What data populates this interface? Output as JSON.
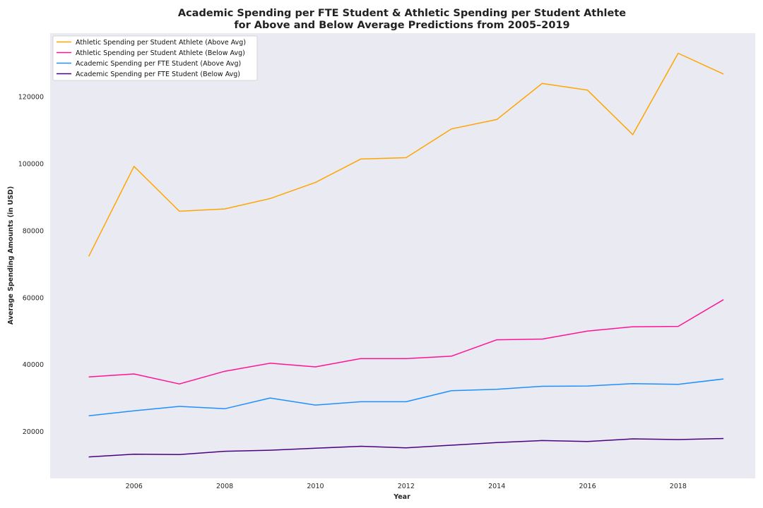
{
  "chart_data": {
    "type": "line",
    "title_lines": [
      "Academic Spending per FTE Student & Athletic Spending per Student Athlete",
      "for Above and Below Average Predictions from 2005–2019"
    ],
    "xlabel": "Year",
    "ylabel": "Average Spending Amounts (in USD)",
    "x": [
      2005,
      2006,
      2007,
      2008,
      2009,
      2010,
      2011,
      2012,
      2013,
      2014,
      2015,
      2016,
      2017,
      2018,
      2019
    ],
    "xlim": [
      2004.15,
      2019.7
    ],
    "ylim": [
      6000,
      139000
    ],
    "xticks": [
      "2006",
      "2008",
      "2010",
      "2012",
      "2014",
      "2016",
      "2018"
    ],
    "yticks": [
      "20000",
      "40000",
      "60000",
      "80000",
      "100000",
      "120000"
    ],
    "grid": false,
    "background": "#eaeaf2",
    "legend_position": "top-left",
    "series": [
      {
        "name": "Athletic Spending per Student Athlete (Above Avg)",
        "color": "#ffa500",
        "values": [
          72300,
          99200,
          85800,
          86500,
          89600,
          94400,
          101400,
          101800,
          110400,
          113200,
          124000,
          122000,
          108700,
          133000,
          126800
        ]
      },
      {
        "name": "Athletic Spending per Student Athlete (Below Avg)",
        "color": "#ff1493",
        "values": [
          36300,
          37200,
          34200,
          38000,
          40400,
          39300,
          41800,
          41800,
          42500,
          47400,
          47600,
          50000,
          51300,
          51400,
          59400
        ]
      },
      {
        "name": "Academic Spending per FTE Student (Above Avg)",
        "color": "#1e90ff",
        "values": [
          24700,
          26200,
          27500,
          26800,
          30000,
          27900,
          28900,
          28900,
          32200,
          32600,
          33500,
          33600,
          34300,
          34100,
          35700
        ]
      },
      {
        "name": "Academic Spending per FTE Student (Below Avg)",
        "color": "#4b0082",
        "values": [
          12400,
          13200,
          13100,
          14100,
          14400,
          15000,
          15600,
          15100,
          15900,
          16700,
          17300,
          17000,
          17800,
          17600,
          17900
        ]
      }
    ]
  }
}
